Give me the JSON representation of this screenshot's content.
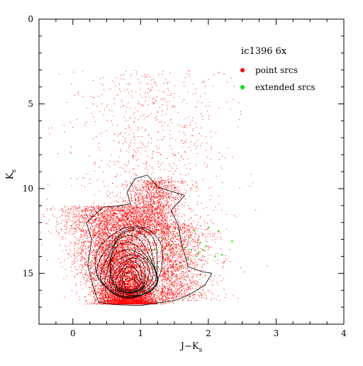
{
  "chart_data": {
    "type": "scatter",
    "title": "ic1396 6x",
    "xlabel": "J−K",
    "xlabel_sub": "s",
    "ylabel": "K",
    "ylabel_sub": "s",
    "xlim": [
      -0.5,
      4.0
    ],
    "ylim": [
      18.0,
      0.0
    ],
    "y_inverted": true,
    "x_ticks": [
      0,
      1,
      2,
      3,
      4
    ],
    "y_ticks": [
      0,
      5,
      10,
      15
    ],
    "grid": false,
    "legend_position": "top-right",
    "series": [
      {
        "name": "point srcs",
        "color": "#ff0000",
        "marker": "dot",
        "density_regions": [
          {
            "label": "main locus",
            "x_range": [
              0.3,
              1.5
            ],
            "y_range": [
              11.0,
              16.8
            ],
            "approx_count": 9000
          },
          {
            "label": "upper branch",
            "x_range": [
              0.8,
              1.6
            ],
            "y_range": [
              9.5,
              12.5
            ],
            "approx_count": 1500
          },
          {
            "label": "reddened tail",
            "x_range": [
              1.3,
              2.2
            ],
            "y_range": [
              12.0,
              16.5
            ],
            "approx_count": 1500
          },
          {
            "label": "bright sparse",
            "x_range": [
              -0.3,
              4.0
            ],
            "y_range": [
              3.0,
              12.0
            ],
            "approx_count": 800
          }
        ]
      },
      {
        "name": "extended srcs",
        "color": "#00dd00",
        "marker": "dot",
        "points": [
          [
            1.1,
            14.2
          ],
          [
            1.2,
            13.6
          ],
          [
            1.33,
            13.0
          ],
          [
            1.4,
            13.9
          ],
          [
            1.45,
            13.3
          ],
          [
            1.55,
            12.8
          ],
          [
            1.6,
            14.6
          ],
          [
            1.65,
            13.5
          ],
          [
            1.7,
            14.2
          ],
          [
            1.72,
            12.9
          ],
          [
            1.75,
            13.6
          ],
          [
            1.8,
            12.5
          ],
          [
            1.82,
            14.0
          ],
          [
            1.85,
            13.8
          ],
          [
            1.88,
            13.2
          ],
          [
            1.92,
            13.6
          ],
          [
            1.97,
            13.4
          ],
          [
            2.0,
            12.3
          ],
          [
            2.1,
            14.0
          ],
          [
            2.15,
            12.5
          ],
          [
            2.2,
            13.9
          ],
          [
            2.35,
            13.1
          ],
          [
            1.25,
            14.6
          ]
        ]
      }
    ],
    "contours": {
      "color": "#000000",
      "center": [
        0.85,
        15.8
      ],
      "levels": 12
    }
  }
}
